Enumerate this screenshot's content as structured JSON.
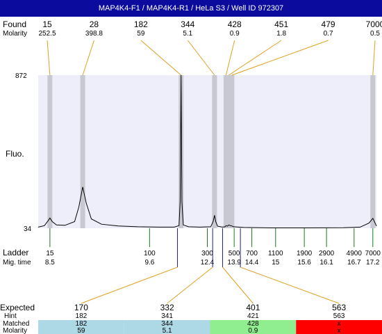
{
  "title": "MAP4K4-F1 / MAP4K4-R1 / HeLa S3 / Well ID 972307",
  "labels": {
    "found": "Found",
    "molarity": "Molarity",
    "fluo": "Fluo.",
    "ladder": "Ladder",
    "mig_time": "Mig. time",
    "expected": "Expected",
    "hint": "Hint",
    "matched": "Matched",
    "molarity_row": "Molarity"
  },
  "colors": {
    "title_bg": "#0b0b9e",
    "plot_bg": "#eeeefb",
    "band": "#c8c8d2",
    "connector": "#e0a020",
    "ladder_tick": "#1a7a1a",
    "expected_marker": "#1a1a9e",
    "matched_ok": "#add8e6",
    "matched_near": "#90ee90",
    "matched_miss": "#ff0000"
  },
  "chart_data": {
    "type": "line",
    "ylabel": "Fluo.",
    "y_ticks": [
      "872",
      "34"
    ],
    "ylim": [
      34,
      872
    ],
    "x_scale": "log",
    "xlim": [
      12,
      7500
    ],
    "found_peaks": [
      {
        "size": "15",
        "molarity": "252.5",
        "bp": 15
      },
      {
        "size": "28",
        "molarity": "398.8",
        "bp": 28
      },
      {
        "size": "182",
        "molarity": "59",
        "bp": 182
      },
      {
        "size": "344",
        "molarity": "5.1",
        "bp": 344
      },
      {
        "size": "428",
        "molarity": "0.9",
        "bp": 428
      },
      {
        "size": "451",
        "molarity": "1.8",
        "bp": 451
      },
      {
        "size": "479",
        "molarity": "0.7",
        "bp": 479
      },
      {
        "size": "7000",
        "molarity": "0.5",
        "bp": 7000
      }
    ],
    "ladder": [
      {
        "size": "15",
        "time": "8.5",
        "bp": 15
      },
      {
        "size": "100",
        "time": "9.6",
        "bp": 100
      },
      {
        "size": "300",
        "time": "12.4",
        "bp": 300
      },
      {
        "size": "500",
        "time": "13.9",
        "bp": 500
      },
      {
        "size": "700",
        "time": "14.4",
        "bp": 700
      },
      {
        "size": "1100",
        "time": "15",
        "bp": 1100
      },
      {
        "size": "1900",
        "time": "15.6",
        "bp": 1900
      },
      {
        "size": "2900",
        "time": "16.1",
        "bp": 2900
      },
      {
        "size": "4900",
        "time": "16.7",
        "bp": 4900
      },
      {
        "size": "7000",
        "time": "17.2",
        "bp": 7000
      }
    ],
    "expected": [
      {
        "expected": "170",
        "hint": "182",
        "matched": "182",
        "molarity": "59",
        "status": "ok",
        "bp": 170
      },
      {
        "expected": "332",
        "hint": "341",
        "matched": "344",
        "molarity": "5.1",
        "status": "ok",
        "bp": 332
      },
      {
        "expected": "401",
        "hint": "421",
        "matched": "428",
        "molarity": "0.9",
        "status": "near",
        "bp": 401
      },
      {
        "expected": "563",
        "hint": "563",
        "matched": "x",
        "molarity": "x",
        "status": "miss",
        "bp": 563
      }
    ],
    "trace": [
      [
        12,
        40
      ],
      [
        13.5,
        48
      ],
      [
        14.5,
        75
      ],
      [
        15,
        90
      ],
      [
        15.7,
        70
      ],
      [
        17,
        52
      ],
      [
        20,
        50
      ],
      [
        24,
        70
      ],
      [
        26,
        150
      ],
      [
        28,
        260
      ],
      [
        30,
        170
      ],
      [
        33,
        85
      ],
      [
        40,
        56
      ],
      [
        55,
        46
      ],
      [
        80,
        42
      ],
      [
        120,
        40
      ],
      [
        160,
        40
      ],
      [
        175,
        48
      ],
      [
        179,
        180
      ],
      [
        182,
        872
      ],
      [
        185,
        180
      ],
      [
        190,
        52
      ],
      [
        210,
        42
      ],
      [
        260,
        40
      ],
      [
        320,
        42
      ],
      [
        335,
        70
      ],
      [
        344,
        105
      ],
      [
        352,
        70
      ],
      [
        365,
        45
      ],
      [
        400,
        40
      ],
      [
        420,
        42
      ],
      [
        428,
        48
      ],
      [
        440,
        45
      ],
      [
        451,
        52
      ],
      [
        465,
        48
      ],
      [
        479,
        46
      ],
      [
        495,
        42
      ],
      [
        600,
        38
      ],
      [
        1000,
        36
      ],
      [
        2000,
        36
      ],
      [
        4000,
        37
      ],
      [
        5500,
        40
      ],
      [
        6500,
        62
      ],
      [
        7000,
        88
      ],
      [
        7400,
        55
      ],
      [
        7500,
        45
      ]
    ]
  }
}
